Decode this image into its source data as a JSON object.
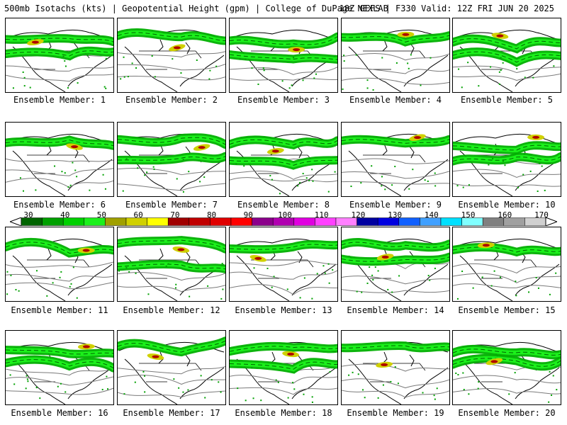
{
  "header": {
    "left_title": "500mb Isotachs (kts) | Geopotential Height (gpm) | College of DuPage NEXLAB",
    "right_title": "18Z GEFS | F330 Valid: 12Z FRI JUN 20 2025"
  },
  "panels": [
    {
      "label": "Ensemble Member: 1"
    },
    {
      "label": "Ensemble Member: 2"
    },
    {
      "label": "Ensemble Member: 3"
    },
    {
      "label": "Ensemble Member: 4"
    },
    {
      "label": "Ensemble Member: 5"
    },
    {
      "label": "Ensemble Member: 6"
    },
    {
      "label": "Ensemble Member: 7"
    },
    {
      "label": "Ensemble Member: 8"
    },
    {
      "label": "Ensemble Member: 9"
    },
    {
      "label": "Ensemble Member: 10"
    },
    {
      "label": "Ensemble Member: 11"
    },
    {
      "label": "Ensemble Member: 12"
    },
    {
      "label": "Ensemble Member: 13"
    },
    {
      "label": "Ensemble Member: 14"
    },
    {
      "label": "Ensemble Member: 15"
    },
    {
      "label": "Ensemble Member: 16"
    },
    {
      "label": "Ensemble Member: 17"
    },
    {
      "label": "Ensemble Member: 18"
    },
    {
      "label": "Ensemble Member: 19"
    },
    {
      "label": "Ensemble Member: 20"
    }
  ],
  "colorbar": {
    "tick_labels": [
      "30",
      "40",
      "50",
      "60",
      "70",
      "80",
      "90",
      "100",
      "110",
      "120",
      "130",
      "140",
      "150",
      "160",
      "170"
    ],
    "colors": [
      "#006400",
      "#00a000",
      "#00d000",
      "#1bf01b",
      "#a0a000",
      "#d0d000",
      "#ffff00",
      "#a00000",
      "#c00000",
      "#e00000",
      "#ff0000",
      "#8b008b",
      "#b000b0",
      "#e000e0",
      "#ff40ff",
      "#ff80ff",
      "#0000a0",
      "#0000e0",
      "#1060ff",
      "#40a0ff",
      "#00e0ff",
      "#80ffff",
      "#808080",
      "#a0a0a0",
      "#d0d0d0"
    ]
  }
}
